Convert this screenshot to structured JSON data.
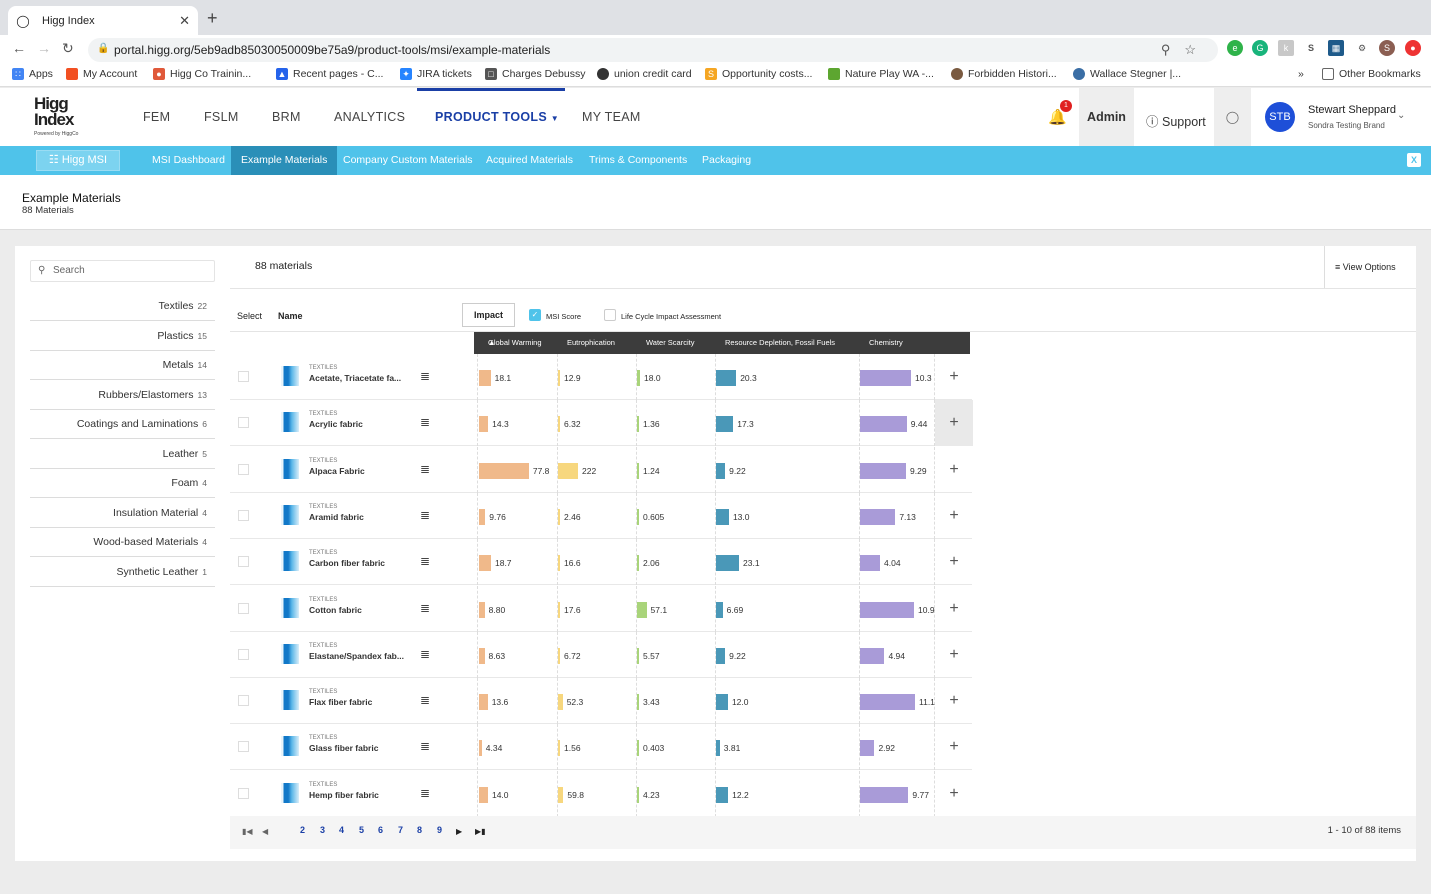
{
  "browser": {
    "tab_title": "Higg Index",
    "url": "portal.higg.org/5eb9adb85030050009be75a9/product-tools/msi/example-materials",
    "bookmarks": [
      "Apps",
      "My Account",
      "Higg Co Trainin...",
      "Recent pages - C...",
      "JIRA tickets",
      "Charges Debussy",
      "union credit card",
      "Opportunity costs...",
      "Nature Play WA -...",
      "Forbidden Histori...",
      "Wallace Stegner |..."
    ],
    "other_bookmarks": "Other Bookmarks",
    "overflow": "»"
  },
  "header": {
    "logo_line1": "Higg",
    "logo_line2": "Index",
    "logo_sub": "Powered by HiggCo",
    "nav": [
      "FEM",
      "FSLM",
      "BRM",
      "ANALYTICS",
      "PRODUCT TOOLS",
      "MY TEAM"
    ],
    "active_nav": "PRODUCT TOOLS",
    "notification_count": "1",
    "admin": "Admin",
    "support": "Support",
    "avatar_initials": "STB",
    "user_name": "Stewart Sheppard",
    "user_brand": "Sondra Testing Brand"
  },
  "subnav": {
    "app_button": "Higg MSI",
    "items": [
      "MSI Dashboard",
      "Example Materials",
      "Company Custom Materials",
      "Acquired Materials",
      "Trims & Components",
      "Packaging"
    ],
    "active": "Example Materials"
  },
  "page": {
    "title": "Example Materials",
    "count": "88 Materials"
  },
  "sidebar": {
    "search_placeholder": "Search",
    "categories": [
      {
        "label": "Textiles",
        "count": "22"
      },
      {
        "label": "Plastics",
        "count": "15"
      },
      {
        "label": "Metals",
        "count": "14"
      },
      {
        "label": "Rubbers/Elastomers",
        "count": "13"
      },
      {
        "label": "Coatings and Laminations",
        "count": "6"
      },
      {
        "label": "Leather",
        "count": "5"
      },
      {
        "label": "Foam",
        "count": "4"
      },
      {
        "label": "Insulation Material",
        "count": "4"
      },
      {
        "label": "Wood-based Materials",
        "count": "4"
      },
      {
        "label": "Synthetic Leather",
        "count": "1"
      }
    ]
  },
  "table": {
    "materials_count": "88 materials",
    "view_options": "View Options",
    "col_select": "Select",
    "col_name": "Name",
    "impact_button": "Impact",
    "msi_score_label": "MSI Score",
    "msi_score_checked": true,
    "lca_label": "Life Cycle Impact Assessment",
    "lca_checked": false,
    "columns": [
      "Global Warming",
      "Eutrophication",
      "Water Scarcity",
      "Resource Depletion, Fossil Fuels",
      "Chemistry"
    ],
    "colors": {
      "global_warming": "#f0b98a",
      "eutrophication": "#f7d77e",
      "water_scarcity": "#a9d47a",
      "resource_depletion": "#4a98b8",
      "chemistry": "#a99bd8"
    },
    "rows": [
      {
        "category": "TEXTILES",
        "name": "Acetate, Triacetate fa...",
        "gw": "18.1",
        "eu": "12.9",
        "ws": "18.0",
        "rd": "20.3",
        "ch": "10.3"
      },
      {
        "category": "TEXTILES",
        "name": "Acrylic fabric",
        "gw": "14.3",
        "eu": "6.32",
        "ws": "1.36",
        "rd": "17.3",
        "ch": "9.44"
      },
      {
        "category": "TEXTILES",
        "name": "Alpaca Fabric",
        "gw": "77.8",
        "eu": "222",
        "ws": "1.24",
        "rd": "9.22",
        "ch": "9.29"
      },
      {
        "category": "TEXTILES",
        "name": "Aramid fabric",
        "gw": "9.76",
        "eu": "2.46",
        "ws": "0.605",
        "rd": "13.0",
        "ch": "7.13"
      },
      {
        "category": "TEXTILES",
        "name": "Carbon fiber fabric",
        "gw": "18.7",
        "eu": "16.6",
        "ws": "2.06",
        "rd": "23.1",
        "ch": "4.04"
      },
      {
        "category": "TEXTILES",
        "name": "Cotton fabric",
        "gw": "8.80",
        "eu": "17.6",
        "ws": "57.1",
        "rd": "6.69",
        "ch": "10.9"
      },
      {
        "category": "TEXTILES",
        "name": "Elastane/Spandex fab...",
        "gw": "8.63",
        "eu": "6.72",
        "ws": "5.57",
        "rd": "9.22",
        "ch": "4.94"
      },
      {
        "category": "TEXTILES",
        "name": "Flax fiber fabric",
        "gw": "13.6",
        "eu": "52.3",
        "ws": "3.43",
        "rd": "12.0",
        "ch": "11.1"
      },
      {
        "category": "TEXTILES",
        "name": "Glass fiber fabric",
        "gw": "4.34",
        "eu": "1.56",
        "ws": "0.403",
        "rd": "3.81",
        "ch": "2.92"
      },
      {
        "category": "TEXTILES",
        "name": "Hemp fiber fabric",
        "gw": "14.0",
        "eu": "59.8",
        "ws": "4.23",
        "rd": "12.2",
        "ch": "9.77"
      }
    ],
    "pages": [
      "2",
      "3",
      "4",
      "5",
      "6",
      "7",
      "8",
      "9"
    ],
    "pager_info": "1 - 10 of 88 items"
  }
}
